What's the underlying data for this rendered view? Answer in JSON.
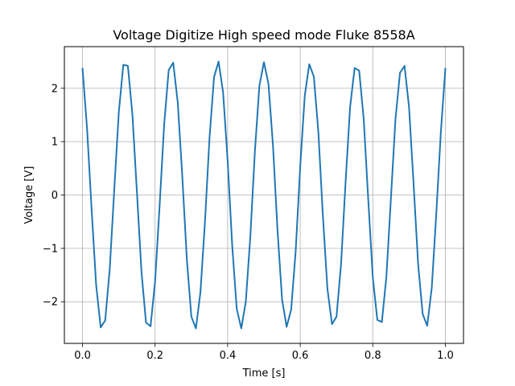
{
  "chart_data": {
    "type": "line",
    "title": "Voltage Digitize High speed mode Fluke 8558A",
    "xlabel": "Time [s]",
    "ylabel": "Voltage [V]",
    "xlim": [
      -0.05,
      1.05
    ],
    "ylim": [
      -2.78,
      2.78
    ],
    "xticks": [
      0.0,
      0.2,
      0.4,
      0.6,
      0.8,
      1.0
    ],
    "xtick_labels": [
      "0.0",
      "0.2",
      "0.4",
      "0.6",
      "0.8",
      "1.0"
    ],
    "yticks": [
      -2,
      -1,
      0,
      1,
      2
    ],
    "ytick_labels": [
      "−2",
      "−1",
      "0",
      "1",
      "2"
    ],
    "grid": true,
    "legend": "none",
    "series": [
      {
        "color": "#1f77b4",
        "x": [
          0.0,
          0.0125,
          0.025,
          0.0375,
          0.05,
          0.0625,
          0.075,
          0.0875,
          0.1,
          0.1125,
          0.125,
          0.1375,
          0.15,
          0.1625,
          0.175,
          0.1875,
          0.2,
          0.2125,
          0.225,
          0.2375,
          0.25,
          0.2625,
          0.275,
          0.2875,
          0.3,
          0.3125,
          0.325,
          0.3375,
          0.35,
          0.3625,
          0.375,
          0.3875,
          0.4,
          0.4125,
          0.425,
          0.4375,
          0.45,
          0.4625,
          0.475,
          0.4875,
          0.5,
          0.5125,
          0.525,
          0.5375,
          0.55,
          0.5625,
          0.575,
          0.5875,
          0.6,
          0.6125,
          0.625,
          0.6375,
          0.65,
          0.6625,
          0.675,
          0.6875,
          0.7,
          0.7125,
          0.725,
          0.7375,
          0.75,
          0.7625,
          0.775,
          0.7875,
          0.8,
          0.8125,
          0.825,
          0.8375,
          0.85,
          0.8625,
          0.875,
          0.8875,
          0.9,
          0.9125,
          0.925,
          0.9375,
          0.95,
          0.9625,
          0.975,
          0.9875,
          1.0
        ],
        "y": [
          2.37,
          1.25,
          -0.26,
          -1.68,
          -2.48,
          -2.35,
          -1.39,
          0.1,
          1.55,
          2.44,
          2.42,
          1.51,
          0.05,
          -1.44,
          -2.39,
          -2.46,
          -1.62,
          -0.2,
          1.32,
          2.34,
          2.48,
          1.73,
          0.35,
          -1.2,
          -2.28,
          -2.5,
          -1.82,
          -0.5,
          1.07,
          2.21,
          2.5,
          1.92,
          0.64,
          -0.94,
          -2.13,
          -2.5,
          -2.0,
          -0.78,
          0.81,
          2.05,
          2.49,
          2.08,
          0.92,
          -0.67,
          -1.96,
          -2.47,
          -2.15,
          -1.05,
          0.53,
          1.86,
          2.45,
          2.22,
          1.18,
          -0.39,
          -1.76,
          -2.42,
          -2.28,
          -1.3,
          0.24,
          1.65,
          2.38,
          2.33,
          1.42,
          -0.09,
          -1.54,
          -2.34,
          -2.38,
          -1.53,
          -0.06,
          1.42,
          2.29,
          2.42,
          1.64,
          0.2,
          -1.3,
          -2.23,
          -2.45,
          -1.74,
          -0.35,
          1.17,
          2.37
        ]
      }
    ]
  }
}
